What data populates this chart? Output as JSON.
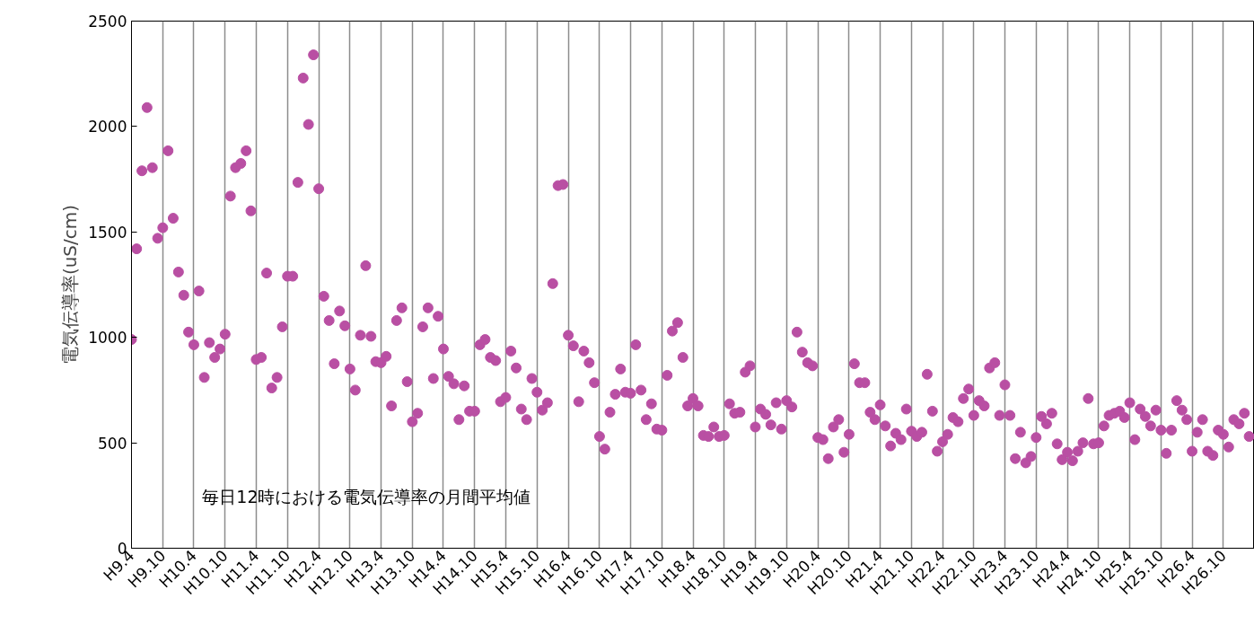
{
  "chart_data": {
    "type": "scatter",
    "ylabel": "電気伝導率(uS/cm)",
    "annotations": [
      "毎日12時における電気伝導率の月間平均値"
    ],
    "x": [
      "1997-04",
      "1997-05",
      "1997-06",
      "1997-07",
      "1997-08",
      "1997-09",
      "1997-10",
      "1997-11",
      "1997-12",
      "1998-01",
      "1998-02",
      "1998-03",
      "1998-04",
      "1998-05",
      "1998-06",
      "1998-07",
      "1998-08",
      "1998-09",
      "1998-10",
      "1998-11",
      "1998-12",
      "1999-01",
      "1999-02",
      "1999-03",
      "1999-04",
      "1999-05",
      "1999-06",
      "1999-07",
      "1999-08",
      "1999-09",
      "1999-10",
      "1999-11",
      "1999-12",
      "2000-01",
      "2000-02",
      "2000-03",
      "2000-04",
      "2000-05",
      "2000-06",
      "2000-07",
      "2000-08",
      "2000-09",
      "2000-10",
      "2000-11",
      "2000-12",
      "2001-01",
      "2001-02",
      "2001-03",
      "2001-04",
      "2001-05",
      "2001-06",
      "2001-07",
      "2001-08",
      "2001-09",
      "2001-10",
      "2001-11",
      "2001-12",
      "2002-01",
      "2002-02",
      "2002-03",
      "2002-04",
      "2002-05",
      "2002-06",
      "2002-07",
      "2002-08",
      "2002-09",
      "2002-10",
      "2002-11",
      "2002-12",
      "2003-01",
      "2003-02",
      "2003-03",
      "2003-04",
      "2003-05",
      "2003-06",
      "2003-07",
      "2003-08",
      "2003-09",
      "2003-10",
      "2003-11",
      "2003-12",
      "2004-01",
      "2004-02",
      "2004-03",
      "2004-04",
      "2004-05",
      "2004-06",
      "2004-07",
      "2004-08",
      "2004-09",
      "2004-10",
      "2004-11",
      "2004-12",
      "2005-01",
      "2005-02",
      "2005-03",
      "2005-04",
      "2005-05",
      "2005-06",
      "2005-07",
      "2005-08",
      "2005-09",
      "2005-10",
      "2005-11",
      "2005-12",
      "2006-01",
      "2006-02",
      "2006-03",
      "2006-04",
      "2006-05",
      "2006-06",
      "2006-07",
      "2006-08",
      "2006-09",
      "2006-10",
      "2006-11",
      "2006-12",
      "2007-01",
      "2007-02",
      "2007-03",
      "2007-04",
      "2007-05",
      "2007-06",
      "2007-07",
      "2007-08",
      "2007-09",
      "2007-10",
      "2007-11",
      "2007-12",
      "2008-01",
      "2008-02",
      "2008-03",
      "2008-04",
      "2008-05",
      "2008-06",
      "2008-07",
      "2008-08",
      "2008-09",
      "2008-10",
      "2008-11",
      "2008-12",
      "2009-01",
      "2009-02",
      "2009-03",
      "2009-04",
      "2009-05",
      "2009-06",
      "2009-07",
      "2009-08",
      "2009-09",
      "2009-10",
      "2009-11",
      "2009-12",
      "2010-01",
      "2010-02",
      "2010-03",
      "2010-04",
      "2010-05",
      "2010-06",
      "2010-07",
      "2010-08",
      "2010-09",
      "2010-10",
      "2010-11",
      "2010-12",
      "2011-01",
      "2011-02",
      "2011-03",
      "2011-04",
      "2011-05",
      "2011-06",
      "2011-07",
      "2011-08",
      "2011-09",
      "2011-10",
      "2011-11",
      "2011-12",
      "2012-01",
      "2012-02",
      "2012-03",
      "2012-04",
      "2012-05",
      "2012-06",
      "2012-07",
      "2012-08",
      "2012-09",
      "2012-10",
      "2012-11",
      "2012-12",
      "2013-01",
      "2013-02",
      "2013-03",
      "2013-04",
      "2013-05",
      "2013-06",
      "2013-07",
      "2013-08",
      "2013-09",
      "2013-10",
      "2013-11",
      "2013-12",
      "2014-01",
      "2014-02",
      "2014-03",
      "2014-04",
      "2014-05",
      "2014-06",
      "2014-07",
      "2014-08",
      "2014-09",
      "2014-10",
      "2014-11",
      "2014-12",
      "2015-01",
      "2015-02",
      "2015-03"
    ],
    "series": [
      {
        "color": "#b94fa3",
        "values": [
          990,
          1420,
          1790,
          2090,
          1805,
          1470,
          1520,
          1885,
          1565,
          1310,
          1200,
          1025,
          965,
          1220,
          810,
          975,
          905,
          945,
          1015,
          1670,
          1805,
          1825,
          1885,
          1600,
          895,
          905,
          1305,
          760,
          810,
          1050,
          1290,
          1290,
          1735,
          2230,
          2010,
          2340,
          1705,
          1195,
          1080,
          875,
          1125,
          1055,
          850,
          750,
          1010,
          1340,
          1005,
          885,
          880,
          910,
          675,
          1080,
          1140,
          790,
          600,
          640,
          1050,
          1140,
          805,
          1100,
          945,
          815,
          780,
          610,
          770,
          650,
          650,
          965,
          990,
          905,
          890,
          695,
          715,
          935,
          855,
          660,
          610,
          805,
          740,
          655,
          690,
          1255,
          1720,
          1725,
          1010,
          960,
          695,
          935,
          880,
          785,
          530,
          470,
          645,
          730,
          850,
          740,
          735,
          965,
          750,
          610,
          685,
          565,
          560,
          820,
          1030,
          1070,
          905,
          675,
          710,
          675,
          535,
          530,
          575,
          530,
          535,
          685,
          640,
          645,
          835,
          865,
          575,
          660,
          635,
          585,
          690,
          565,
          700,
          670,
          1025,
          930,
          880,
          865,
          525,
          515,
          425,
          575,
          610,
          455,
          540,
          875,
          785,
          785,
          645,
          610,
          680,
          580,
          485,
          545,
          515,
          660,
          555,
          530,
          550,
          825,
          650,
          460,
          505,
          540,
          620,
          600,
          710,
          755,
          630,
          700,
          675,
          855,
          880,
          630,
          775,
          630,
          425,
          550,
          405,
          435,
          525,
          625,
          590,
          640,
          495,
          420,
          455,
          415,
          460,
          500,
          710,
          495,
          500,
          580,
          630,
          640,
          650,
          620,
          690,
          515,
          660,
          625,
          580,
          655,
          560,
          450,
          560,
          700,
          655,
          610,
          460,
          550,
          610,
          460,
          440,
          560,
          540,
          480,
          610,
          590,
          640,
          530
        ]
      }
    ],
    "marker": "circle",
    "grid": "x",
    "xlim": [
      "1997-04",
      "2015-04"
    ],
    "ylim": [
      0,
      2500
    ],
    "yticks": [
      0,
      500,
      1000,
      1500,
      2000,
      2500
    ],
    "xticks": [
      {
        "value": "1997-04",
        "label": "H9.4"
      },
      {
        "value": "1997-10",
        "label": "H9.10"
      },
      {
        "value": "1998-04",
        "label": "H10.4"
      },
      {
        "value": "1998-10",
        "label": "H10.10"
      },
      {
        "value": "1999-04",
        "label": "H11.4"
      },
      {
        "value": "1999-10",
        "label": "H11.10"
      },
      {
        "value": "2000-04",
        "label": "H12.4"
      },
      {
        "value": "2000-10",
        "label": "H12.10"
      },
      {
        "value": "2001-04",
        "label": "H13.4"
      },
      {
        "value": "2001-10",
        "label": "H13.10"
      },
      {
        "value": "2002-04",
        "label": "H14.4"
      },
      {
        "value": "2002-10",
        "label": "H14.10"
      },
      {
        "value": "2003-04",
        "label": "H15.4"
      },
      {
        "value": "2003-10",
        "label": "H15.10"
      },
      {
        "value": "2004-04",
        "label": "H16.4"
      },
      {
        "value": "2004-10",
        "label": "H16.10"
      },
      {
        "value": "2005-04",
        "label": "H17.4"
      },
      {
        "value": "2005-10",
        "label": "H17.10"
      },
      {
        "value": "2006-04",
        "label": "H18.4"
      },
      {
        "value": "2006-10",
        "label": "H18.10"
      },
      {
        "value": "2007-04",
        "label": "H19.4"
      },
      {
        "value": "2007-10",
        "label": "H19.10"
      },
      {
        "value": "2008-04",
        "label": "H20.4"
      },
      {
        "value": "2008-10",
        "label": "H20.10"
      },
      {
        "value": "2009-04",
        "label": "H21.4"
      },
      {
        "value": "2009-10",
        "label": "H21.10"
      },
      {
        "value": "2010-04",
        "label": "H22.4"
      },
      {
        "value": "2010-10",
        "label": "H22.10"
      },
      {
        "value": "2011-04",
        "label": "H23.4"
      },
      {
        "value": "2011-10",
        "label": "H23.10"
      },
      {
        "value": "2012-04",
        "label": "H24.4"
      },
      {
        "value": "2012-10",
        "label": "H24.10"
      },
      {
        "value": "2013-04",
        "label": "H25.4"
      },
      {
        "value": "2013-10",
        "label": "H25.10"
      },
      {
        "value": "2014-04",
        "label": "H26.4"
      },
      {
        "value": "2014-10",
        "label": "H26.10"
      }
    ]
  }
}
